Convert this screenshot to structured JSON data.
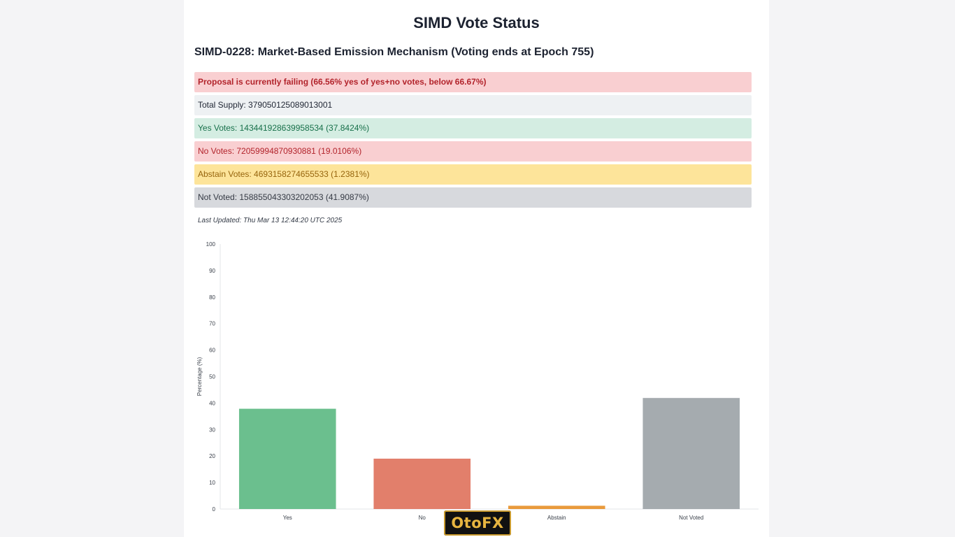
{
  "page": {
    "title": "SIMD Vote Status",
    "subtitle": "SIMD-0228: Market-Based Emission Mechanism (Voting ends at Epoch 755)",
    "status_rows": {
      "failing": "Proposal is currently failing (66.56% yes of yes+no votes, below 66.67%)",
      "supply": "Total Supply: 379050125089013001",
      "yes": "Yes Votes: 143441928639958534 (37.8424%)",
      "no": "No Votes: 72059994870930881 (19.0106%)",
      "abstain": "Abstain Votes: 4693158274655533 (1.2381%)",
      "not_voted": "Not Voted: 158855043303202053 (41.9087%)"
    },
    "last_updated": "Last Updated: Thu Mar 13 12:44:20 UTC 2025",
    "watermark": "OtoFX"
  },
  "colors": {
    "yes": "#6bbf8e",
    "no": "#e27f6b",
    "abstain": "#e99a3c",
    "not_voted": "#a5abaf"
  },
  "chart_data": {
    "type": "bar",
    "categories": [
      "Yes",
      "No",
      "Abstain",
      "Not Voted"
    ],
    "values": [
      37.8424,
      19.0106,
      1.2381,
      41.9087
    ],
    "ylabel": "Percentage (%)",
    "xlabel": "",
    "ylim": [
      0,
      100
    ],
    "yticks": [
      0,
      10,
      20,
      30,
      40,
      50,
      60,
      70,
      80,
      90,
      100
    ],
    "grid": false,
    "legend": "none"
  }
}
